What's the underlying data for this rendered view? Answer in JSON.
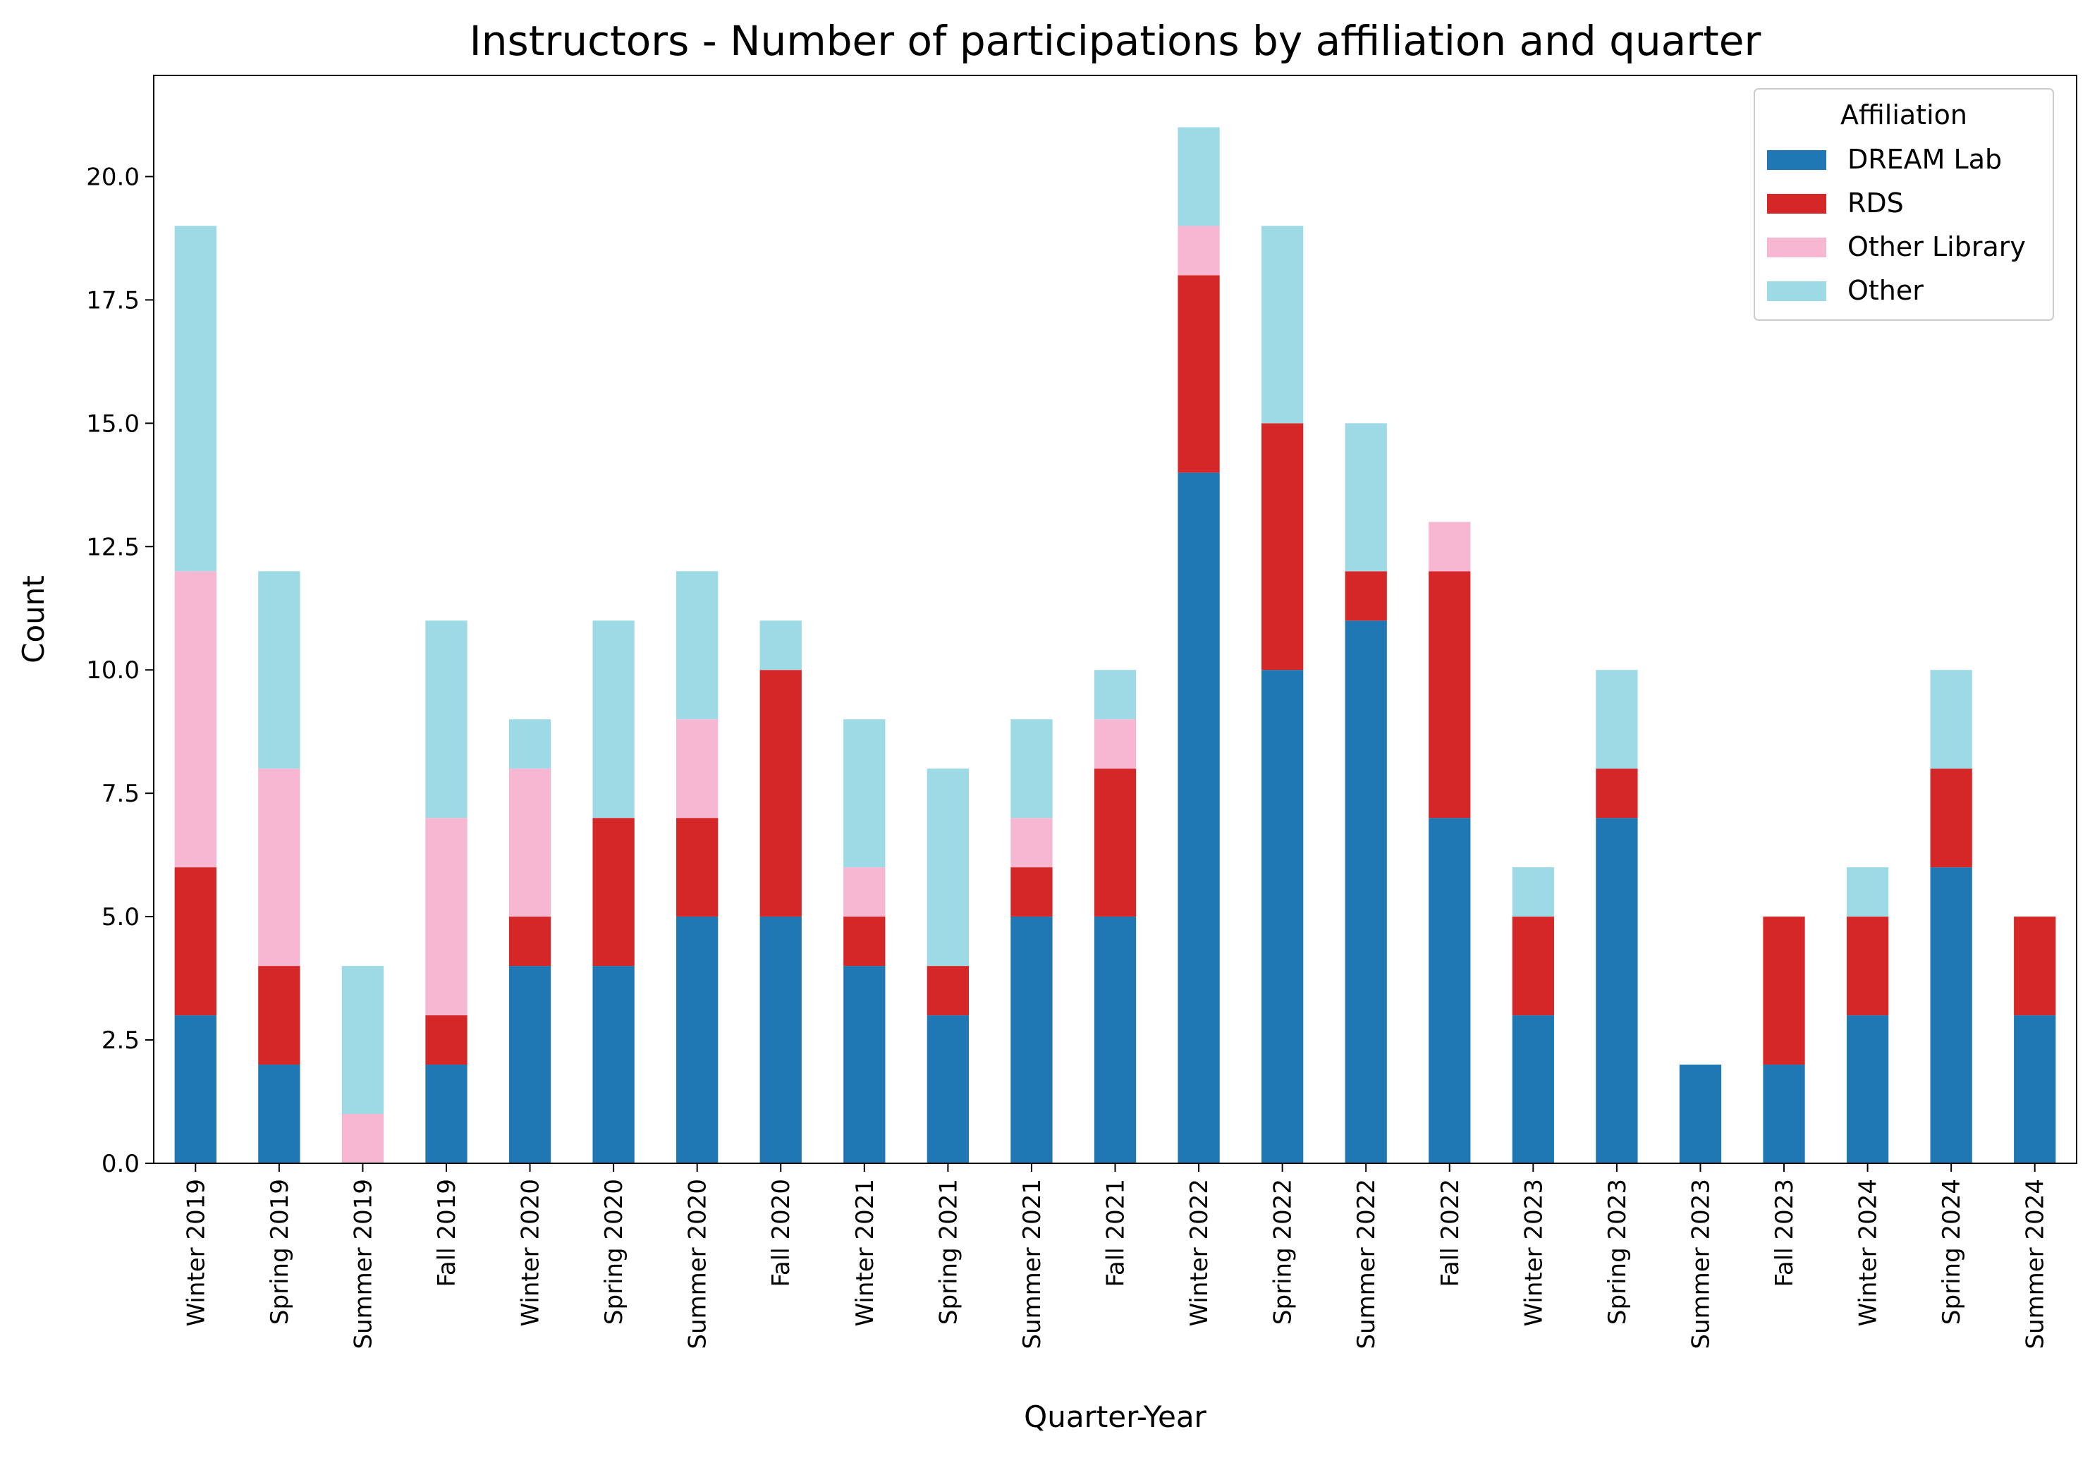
{
  "chart_data": {
    "type": "bar",
    "stacked": true,
    "title": "Instructors - Number of participations by affiliation and quarter",
    "xlabel": "Quarter-Year",
    "ylabel": "Count",
    "ylim": [
      0,
      22.05
    ],
    "yticks": [
      0.0,
      2.5,
      5.0,
      7.5,
      10.0,
      12.5,
      15.0,
      17.5,
      20.0
    ],
    "ytick_labels": [
      "0.0",
      "2.5",
      "5.0",
      "7.5",
      "10.0",
      "12.5",
      "15.0",
      "17.5",
      "20.0"
    ],
    "categories": [
      "Winter 2019",
      "Spring 2019",
      "Summer 2019",
      "Fall 2019",
      "Winter 2020",
      "Spring 2020",
      "Summer 2020",
      "Fall 2020",
      "Winter 2021",
      "Spring 2021",
      "Summer 2021",
      "Fall 2021",
      "Winter 2022",
      "Spring 2022",
      "Summer 2022",
      "Fall 2022",
      "Winter 2023",
      "Spring 2023",
      "Summer 2023",
      "Fall 2023",
      "Winter 2024",
      "Spring 2024",
      "Summer 2024"
    ],
    "series": [
      {
        "name": "DREAM Lab",
        "color": "#1f77b4",
        "values": [
          3,
          2,
          0,
          2,
          4,
          4,
          5,
          5,
          4,
          3,
          5,
          5,
          14,
          10,
          11,
          7,
          3,
          7,
          2,
          2,
          3,
          6,
          3
        ]
      },
      {
        "name": "RDS",
        "color": "#d62728",
        "values": [
          3,
          2,
          0,
          1,
          1,
          3,
          2,
          5,
          1,
          1,
          1,
          3,
          4,
          5,
          1,
          5,
          2,
          1,
          0,
          3,
          2,
          2,
          2
        ]
      },
      {
        "name": "Other Library",
        "color": "#f7b6d2",
        "values": [
          6,
          4,
          1,
          4,
          3,
          0,
          2,
          0,
          1,
          0,
          1,
          1,
          1,
          0,
          0,
          1,
          0,
          0,
          0,
          0,
          0,
          0,
          0
        ]
      },
      {
        "name": "Other",
        "color": "#9edae5",
        "values": [
          7,
          4,
          3,
          4,
          1,
          4,
          3,
          1,
          3,
          4,
          2,
          1,
          2,
          4,
          3,
          0,
          1,
          2,
          0,
          0,
          1,
          2,
          0
        ]
      }
    ],
    "legend": {
      "title": "Affiliation",
      "placement": "top-right"
    },
    "grid": false
  }
}
